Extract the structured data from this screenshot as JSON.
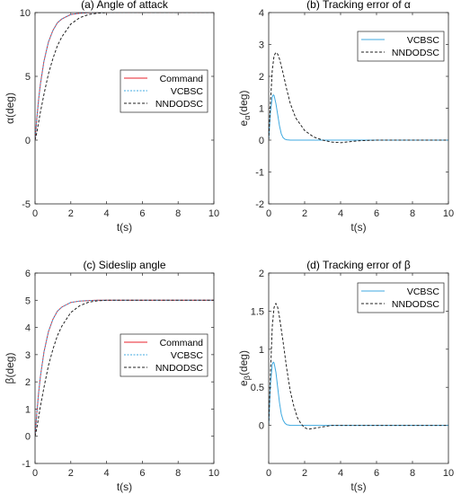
{
  "chart_data": [
    {
      "type": "line",
      "title": "(a) Angle of attack",
      "xlabel": "t(s)",
      "ylabel": "α(deg)",
      "xlim": [
        0,
        10
      ],
      "ylim": [
        -5,
        10
      ],
      "xticks": [
        0,
        2,
        4,
        6,
        8,
        10
      ],
      "yticks": [
        -5,
        0,
        5,
        10
      ],
      "legend": "right-middle",
      "series": [
        {
          "name": "Command",
          "color": "#e8212b",
          "dash": "solid",
          "x": [
            0,
            0.1,
            0.2,
            0.3,
            0.5,
            0.75,
            1,
            1.25,
            1.5,
            2,
            2.5,
            3,
            3.5,
            4,
            5,
            6,
            8,
            10
          ],
          "y": [
            0,
            1.7,
            3.2,
            4.4,
            6.2,
            7.7,
            8.6,
            9.2,
            9.5,
            9.85,
            9.95,
            9.99,
            10,
            10,
            10,
            10,
            10,
            10
          ]
        },
        {
          "name": "VCBSC",
          "color": "#3fa9e0",
          "dash": "dotted",
          "x": [
            0,
            0.1,
            0.2,
            0.3,
            0.5,
            0.75,
            1,
            1.25,
            1.5,
            2,
            2.5,
            3,
            3.5,
            4,
            5,
            6,
            8,
            10
          ],
          "y": [
            0,
            1.7,
            3.2,
            4.4,
            6.2,
            7.7,
            8.6,
            9.2,
            9.5,
            9.85,
            9.95,
            9.99,
            10,
            10,
            10,
            10,
            10,
            10
          ]
        },
        {
          "name": "NNDODSC",
          "color": "#222222",
          "dash": "dashed",
          "x": [
            0,
            0.1,
            0.2,
            0.3,
            0.5,
            0.75,
            1,
            1.25,
            1.5,
            2,
            2.5,
            3,
            3.5,
            4,
            5,
            6,
            8,
            10
          ],
          "y": [
            0,
            0.6,
            1.4,
            2.2,
            3.6,
            5.2,
            6.4,
            7.4,
            8.1,
            9.1,
            9.6,
            9.85,
            9.95,
            10,
            10.02,
            10,
            10,
            10
          ]
        }
      ]
    },
    {
      "type": "line",
      "title": "(b) Tracking error of α",
      "xlabel": "t(s)",
      "ylabel": "eα(deg)",
      "ylabel_main": "e",
      "ylabel_sub": "α",
      "xlim": [
        0,
        10
      ],
      "ylim": [
        -2,
        4
      ],
      "xticks": [
        0,
        2,
        4,
        6,
        8,
        10
      ],
      "yticks": [
        -2,
        -1,
        0,
        1,
        2,
        3,
        4
      ],
      "legend": "top-right",
      "series": [
        {
          "name": "VCBSC",
          "color": "#3fa9e0",
          "dash": "solid",
          "x": [
            0,
            0.1,
            0.2,
            0.25,
            0.3,
            0.4,
            0.5,
            0.6,
            0.7,
            0.8,
            0.9,
            1,
            1.2,
            1.5,
            2,
            3,
            5,
            10
          ],
          "y": [
            0,
            0.9,
            1.35,
            1.42,
            1.4,
            1.15,
            0.8,
            0.45,
            0.2,
            0.08,
            0.03,
            0.01,
            0,
            0,
            0,
            0,
            0,
            0
          ]
        },
        {
          "name": "NNDODSC",
          "color": "#222222",
          "dash": "dashed",
          "x": [
            0,
            0.1,
            0.2,
            0.3,
            0.4,
            0.5,
            0.6,
            0.8,
            1,
            1.2,
            1.5,
            2,
            2.5,
            3,
            3.5,
            4,
            4.5,
            5,
            6,
            10
          ],
          "y": [
            0,
            1.2,
            2.2,
            2.65,
            2.75,
            2.7,
            2.55,
            2.1,
            1.6,
            1.15,
            0.7,
            0.3,
            0.1,
            0,
            -0.06,
            -0.08,
            -0.05,
            -0.02,
            0,
            0
          ]
        }
      ]
    },
    {
      "type": "line",
      "title": "(c) Sideslip angle",
      "xlabel": "t(s)",
      "ylabel": "β(deg)",
      "xlim": [
        0,
        10
      ],
      "ylim": [
        -1,
        6
      ],
      "xticks": [
        0,
        2,
        4,
        6,
        8,
        10
      ],
      "yticks": [
        -1,
        0,
        1,
        2,
        3,
        4,
        5,
        6
      ],
      "legend": "right-lower",
      "series": [
        {
          "name": "Command",
          "color": "#e8212b",
          "dash": "solid",
          "x": [
            0,
            0.1,
            0.2,
            0.3,
            0.5,
            0.75,
            1,
            1.25,
            1.5,
            2,
            2.5,
            3,
            3.5,
            4,
            5,
            6,
            8,
            10
          ],
          "y": [
            0,
            0.85,
            1.6,
            2.2,
            3.1,
            3.85,
            4.3,
            4.6,
            4.75,
            4.92,
            4.97,
            4.99,
            5,
            5,
            5,
            5,
            5,
            5
          ]
        },
        {
          "name": "VCBSC",
          "color": "#3fa9e0",
          "dash": "dotted",
          "x": [
            0,
            0.1,
            0.2,
            0.3,
            0.5,
            0.75,
            1,
            1.25,
            1.5,
            2,
            2.5,
            3,
            3.5,
            4,
            5,
            6,
            8,
            10
          ],
          "y": [
            0,
            0.85,
            1.6,
            2.2,
            3.1,
            3.85,
            4.3,
            4.6,
            4.75,
            4.92,
            4.97,
            4.99,
            5,
            5,
            5,
            5,
            5,
            5
          ]
        },
        {
          "name": "NNDODSC",
          "color": "#222222",
          "dash": "dashed",
          "x": [
            0,
            0.1,
            0.2,
            0.3,
            0.5,
            0.75,
            1,
            1.25,
            1.5,
            2,
            2.5,
            3,
            3.5,
            4,
            5,
            6,
            8,
            10
          ],
          "y": [
            0,
            0.3,
            0.7,
            1.1,
            1.8,
            2.6,
            3.2,
            3.7,
            4.05,
            4.55,
            4.8,
            4.93,
            4.98,
            5,
            5,
            5,
            5,
            5
          ]
        }
      ]
    },
    {
      "type": "line",
      "title": "(d) Tracking error of β",
      "xlabel": "t(s)",
      "ylabel": "eβ(deg)",
      "ylabel_main": "e",
      "ylabel_sub": "β",
      "xlim": [
        0,
        10
      ],
      "ylim": [
        -0.5,
        2
      ],
      "xticks": [
        0,
        2,
        4,
        6,
        8,
        10
      ],
      "yticks": [
        0,
        0.5,
        1,
        1.5,
        2
      ],
      "legend": "top-right",
      "series": [
        {
          "name": "VCBSC",
          "color": "#3fa9e0",
          "dash": "solid",
          "x": [
            0,
            0.1,
            0.2,
            0.25,
            0.3,
            0.4,
            0.5,
            0.6,
            0.7,
            0.8,
            0.9,
            1,
            1.2,
            1.5,
            2,
            3,
            5,
            10
          ],
          "y": [
            0,
            0.55,
            0.8,
            0.83,
            0.82,
            0.7,
            0.5,
            0.3,
            0.15,
            0.07,
            0.03,
            0.01,
            0,
            0,
            0,
            0,
            0,
            0
          ]
        },
        {
          "name": "NNDODSC",
          "color": "#222222",
          "dash": "dashed",
          "x": [
            0,
            0.1,
            0.2,
            0.3,
            0.4,
            0.5,
            0.6,
            0.8,
            1,
            1.2,
            1.4,
            1.6,
            1.8,
            2,
            2.2,
            2.5,
            3,
            3.5,
            4,
            5,
            10
          ],
          "y": [
            0,
            0.7,
            1.3,
            1.55,
            1.6,
            1.55,
            1.42,
            1.1,
            0.75,
            0.45,
            0.25,
            0.1,
            0.02,
            -0.03,
            -0.05,
            -0.04,
            -0.02,
            0,
            0,
            0,
            0
          ]
        }
      ]
    }
  ]
}
